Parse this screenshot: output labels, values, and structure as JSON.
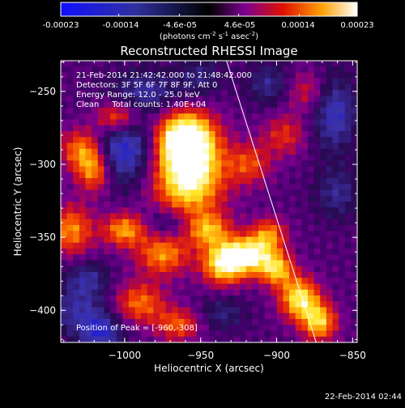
{
  "colorbar": {
    "tick_labels": [
      "-0.00023",
      "-0.00014",
      "-4.6e-05",
      "4.6e-05",
      "0.00014",
      "0.00023"
    ],
    "tick_values": [
      -0.00023,
      -0.00014,
      -4.6e-05,
      4.6e-05,
      0.00014,
      0.00023
    ],
    "range": [
      -0.00023,
      0.00023
    ],
    "units_main": "(photons cm",
    "units_sup1": "-2",
    "units_mid": " s",
    "units_sup2": "-1",
    "units_end": " asec",
    "units_sup3": "-2",
    "units_close": ")"
  },
  "chart_data": {
    "type": "heatmap",
    "title": "Reconstructed RHESSI Image",
    "xlabel": "Heliocentric X (arcsec)",
    "ylabel": "Heliocentric Y (arcsec)",
    "xlim": [
      -1042,
      -847
    ],
    "ylim": [
      -422,
      -229
    ],
    "xticks": [
      -1000,
      -950,
      -900,
      -850
    ],
    "xtick_labels": [
      "−1000",
      "−950",
      "−900",
      "−850"
    ],
    "yticks": [
      -400,
      -350,
      -300,
      -250
    ],
    "ytick_labels": [
      "−400",
      "−350",
      "−300",
      "−250"
    ],
    "info_lines": [
      "21-Feb-2014 21:42:42.000 to 21:48:42.000",
      "Detectors: 3F 5F 6F 7F 8F 9F, Att 0",
      "Energy Range: 12.0 - 25.0 keV",
      "Clean     Total counts: 1.40E+04"
    ],
    "peak_label": "Position of Peak = [-960,-308]",
    "peak": [
      -960,
      -308
    ],
    "limb_line": [
      [
        -933,
        -229
      ],
      [
        -874,
        -422
      ]
    ],
    "colormap": "blue-black-red-yellow-white"
  },
  "footer": {
    "timestamp": "22-Feb-2014 02:44"
  }
}
